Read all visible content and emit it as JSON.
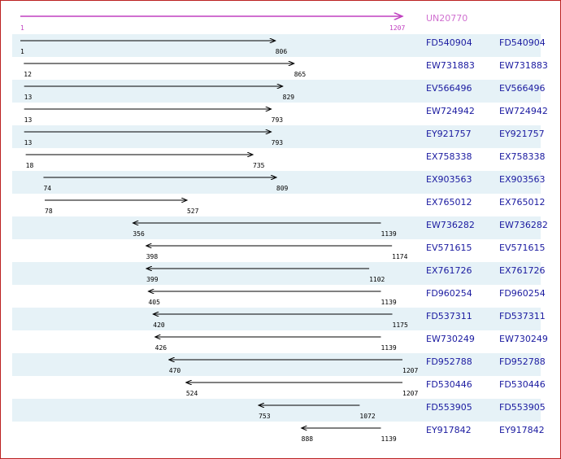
{
  "reference": {
    "id": "UN20770",
    "start": 1,
    "end": 1207
  },
  "rows": [
    {
      "id": "FD540904",
      "start": 1,
      "end": 806,
      "reverse": false
    },
    {
      "id": "EW731883",
      "start": 12,
      "end": 865,
      "reverse": false
    },
    {
      "id": "EV566496",
      "start": 13,
      "end": 829,
      "reverse": false
    },
    {
      "id": "EW724942",
      "start": 13,
      "end": 793,
      "reverse": false
    },
    {
      "id": "EY921757",
      "start": 13,
      "end": 793,
      "reverse": false
    },
    {
      "id": "EX758338",
      "start": 18,
      "end": 735,
      "reverse": false
    },
    {
      "id": "EX903563",
      "start": 74,
      "end": 809,
      "reverse": false
    },
    {
      "id": "EX765012",
      "start": 78,
      "end": 527,
      "reverse": false
    },
    {
      "id": "EW736282",
      "start": 356,
      "end": 1139,
      "reverse": true
    },
    {
      "id": "EV571615",
      "start": 398,
      "end": 1174,
      "reverse": true
    },
    {
      "id": "EX761726",
      "start": 399,
      "end": 1102,
      "reverse": true
    },
    {
      "id": "FD960254",
      "start": 405,
      "end": 1139,
      "reverse": true
    },
    {
      "id": "FD537311",
      "start": 420,
      "end": 1175,
      "reverse": true
    },
    {
      "id": "EW730249",
      "start": 426,
      "end": 1139,
      "reverse": true
    },
    {
      "id": "FD952788",
      "start": 470,
      "end": 1207,
      "reverse": true
    },
    {
      "id": "FD530446",
      "start": 524,
      "end": 1207,
      "reverse": true
    },
    {
      "id": "FD553905",
      "start": 753,
      "end": 1072,
      "reverse": true
    },
    {
      "id": "EY917842",
      "start": 888,
      "end": 1139,
      "reverse": true
    }
  ]
}
